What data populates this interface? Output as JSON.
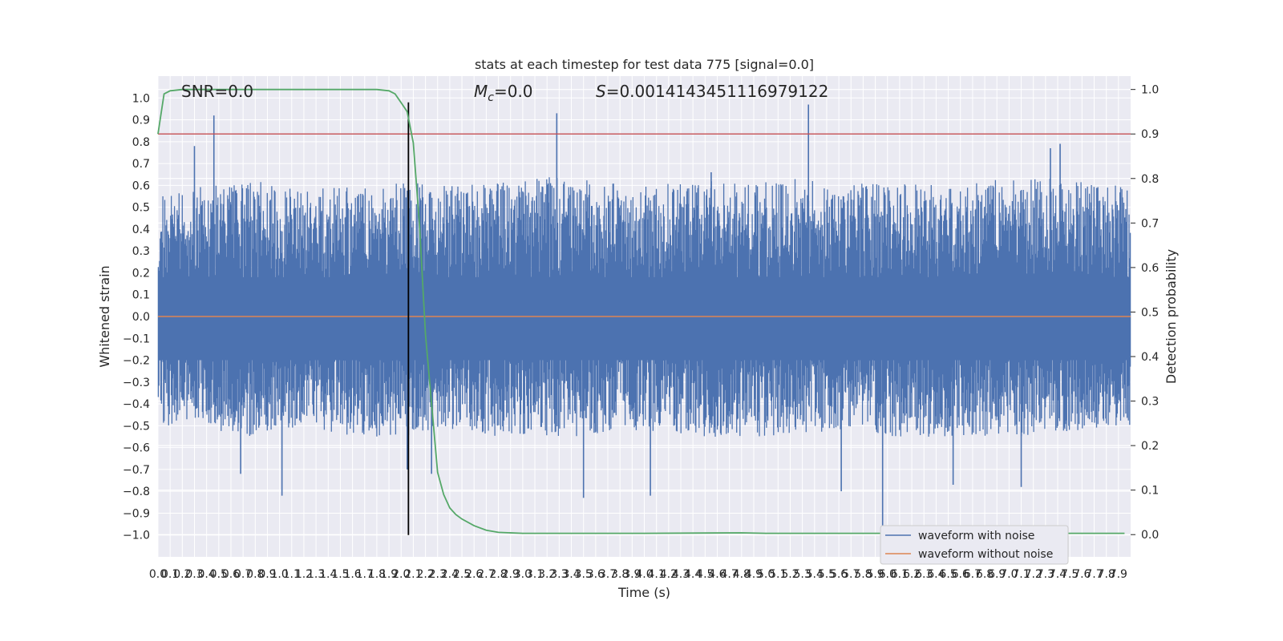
{
  "chart_data": {
    "type": "line",
    "title": "stats at each timestep for test data 775 [signal=0.0]",
    "xlabel": "Time (s)",
    "ylabel": "Whitened strain",
    "y2label": "Detection probability",
    "xlim": [
      0.0,
      8.0
    ],
    "ylim": [
      -1.1,
      1.1
    ],
    "y2lim": [
      -0.05,
      1.03
    ],
    "x_ticks": [
      0.0,
      0.1,
      0.2,
      0.3,
      0.4,
      0.5,
      0.6,
      0.7,
      0.8,
      0.9,
      1.0,
      1.1,
      1.2,
      1.3,
      1.4,
      1.5,
      1.6,
      1.7,
      1.8,
      1.9,
      2.0,
      2.1,
      2.2,
      2.3,
      2.4,
      2.5,
      2.6,
      2.7,
      2.8,
      2.9,
      3.0,
      3.1,
      3.2,
      3.3,
      3.4,
      3.5,
      3.6,
      3.7,
      3.8,
      3.9,
      4.0,
      4.1,
      4.2,
      4.3,
      4.4,
      4.5,
      4.6,
      4.7,
      4.8,
      4.9,
      5.0,
      5.1,
      5.2,
      5.3,
      5.4,
      5.5,
      5.6,
      5.7,
      5.8,
      5.9,
      6.0,
      6.1,
      6.2,
      6.3,
      6.4,
      6.5,
      6.6,
      6.7,
      6.8,
      6.9,
      7.0,
      7.1,
      7.2,
      7.3,
      7.4,
      7.5,
      7.6,
      7.7,
      7.8,
      7.9
    ],
    "y_ticks": [
      -1.0,
      -0.9,
      -0.8,
      -0.7,
      -0.6,
      -0.5,
      -0.4,
      -0.3,
      -0.2,
      -0.1,
      0.0,
      0.1,
      0.2,
      0.3,
      0.4,
      0.5,
      0.6,
      0.7,
      0.8,
      0.9,
      1.0
    ],
    "y2_ticks": [
      0.0,
      0.1,
      0.2,
      0.3,
      0.4,
      0.5,
      0.6,
      0.7,
      0.8,
      0.9,
      1.0
    ],
    "annotations": {
      "snr": "SNR=0.0",
      "mc": "=0.0",
      "s": "=0.0014143451116979122"
    },
    "noise_envelope": {
      "x": [
        0.0,
        0.4,
        0.8,
        1.2,
        1.6,
        2.0,
        2.4,
        2.8,
        3.2,
        3.6,
        4.0,
        4.4,
        4.8,
        5.2,
        5.6,
        6.0,
        6.4,
        6.8,
        7.2,
        7.6,
        8.0
      ],
      "upper": [
        0.55,
        0.6,
        0.62,
        0.58,
        0.6,
        0.62,
        0.6,
        0.62,
        0.64,
        0.62,
        0.6,
        0.62,
        0.62,
        0.64,
        0.6,
        0.62,
        0.6,
        0.62,
        0.64,
        0.62,
        0.6
      ],
      "lower": [
        -0.5,
        -0.52,
        -0.55,
        -0.5,
        -0.55,
        -0.55,
        -0.52,
        -0.55,
        -0.55,
        -0.55,
        -0.52,
        -0.55,
        -0.55,
        -0.55,
        -0.52,
        -0.55,
        -0.55,
        -0.55,
        -0.55,
        -0.52,
        -0.5
      ]
    },
    "noise_spikes": [
      {
        "x": 0.3,
        "y": 0.78
      },
      {
        "x": 0.46,
        "y": 0.92
      },
      {
        "x": 3.28,
        "y": 0.93
      },
      {
        "x": 5.35,
        "y": 0.97
      },
      {
        "x": 7.42,
        "y": 0.79
      },
      {
        "x": 7.34,
        "y": 0.77
      },
      {
        "x": 4.55,
        "y": 0.66
      },
      {
        "x": 1.02,
        "y": -0.82
      },
      {
        "x": 3.5,
        "y": -0.83
      },
      {
        "x": 4.05,
        "y": -0.82
      },
      {
        "x": 5.96,
        "y": -0.98
      },
      {
        "x": 0.68,
        "y": -0.72
      },
      {
        "x": 7.1,
        "y": -0.78
      },
      {
        "x": 2.05,
        "y": -0.7
      },
      {
        "x": 2.25,
        "y": -0.72
      },
      {
        "x": 5.62,
        "y": -0.8
      },
      {
        "x": 6.54,
        "y": -0.77
      }
    ],
    "series": [
      {
        "name": "waveform with noise",
        "color": "#4c72b0"
      },
      {
        "name": "waveform without noise",
        "color": "#dd8452",
        "y": 0.0
      },
      {
        "name": "detection probability",
        "color": "#55a868",
        "axis": "right",
        "x": [
          0.0,
          0.05,
          0.1,
          0.2,
          0.5,
          1.0,
          1.5,
          1.8,
          1.9,
          1.95,
          2.0,
          2.05,
          2.1,
          2.15,
          2.2,
          2.3,
          2.35,
          2.4,
          2.45,
          2.5,
          2.6,
          2.7,
          2.8,
          3.0,
          4.0,
          4.8,
          5.0,
          6.0,
          7.0,
          8.0
        ],
        "y": [
          0.9,
          0.99,
          0.997,
          1.0,
          1.0,
          1.0,
          1.0,
          1.0,
          0.997,
          0.99,
          0.97,
          0.95,
          0.88,
          0.7,
          0.45,
          0.14,
          0.09,
          0.06,
          0.045,
          0.035,
          0.02,
          0.01,
          0.005,
          0.003,
          0.003,
          0.004,
          0.003,
          0.003,
          0.003,
          0.003
        ]
      },
      {
        "name": "threshold",
        "color": "#c44e52",
        "axis": "right",
        "y": 0.9
      },
      {
        "name": "marker",
        "color": "#000000",
        "x": 2.06
      }
    ],
    "legend": {
      "entries": [
        {
          "label": "waveform with noise",
          "color": "#4c72b0"
        },
        {
          "label": "waveform without noise",
          "color": "#dd8452"
        }
      ],
      "position": "bottom-right"
    },
    "grid": true
  }
}
